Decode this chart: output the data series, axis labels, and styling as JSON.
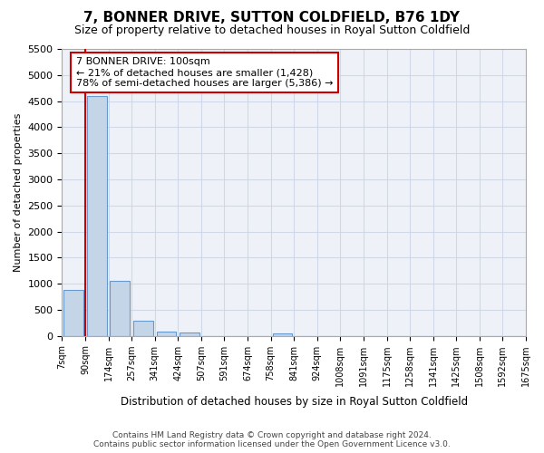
{
  "title": "7, BONNER DRIVE, SUTTON COLDFIELD, B76 1DY",
  "subtitle": "Size of property relative to detached houses in Royal Sutton Coldfield",
  "xlabel": "Distribution of detached houses by size in Royal Sutton Coldfield",
  "ylabel": "Number of detached properties",
  "footer_line1": "Contains HM Land Registry data © Crown copyright and database right 2024.",
  "footer_line2": "Contains public sector information licensed under the Open Government Licence v3.0.",
  "bin_labels": [
    "7sqm",
    "90sqm",
    "174sqm",
    "257sqm",
    "341sqm",
    "424sqm",
    "507sqm",
    "591sqm",
    "674sqm",
    "758sqm",
    "841sqm",
    "924sqm",
    "1008sqm",
    "1091sqm",
    "1175sqm",
    "1258sqm",
    "1341sqm",
    "1425sqm",
    "1508sqm",
    "1592sqm",
    "1675sqm"
  ],
  "bar_values": [
    880,
    4600,
    1060,
    290,
    75,
    55,
    0,
    0,
    0,
    50,
    0,
    0,
    0,
    0,
    0,
    0,
    0,
    0,
    0,
    0
  ],
  "bar_color": "#c5d5e8",
  "bar_edge_color": "#6699cc",
  "grid_color": "#d0d8e8",
  "annotation_line_color": "#cc0000",
  "subject_bin_index": 1,
  "annotation_text": "7 BONNER DRIVE: 100sqm\n← 21% of detached houses are smaller (1,428)\n78% of semi-detached houses are larger (5,386) →",
  "annotation_box_color": "#ffffff",
  "annotation_box_edge": "#cc0000",
  "ylim": [
    0,
    5500
  ],
  "yticks": [
    0,
    500,
    1000,
    1500,
    2000,
    2500,
    3000,
    3500,
    4000,
    4500,
    5000,
    5500
  ],
  "background_color": "#ffffff",
  "plot_bg_color": "#eef2f8"
}
